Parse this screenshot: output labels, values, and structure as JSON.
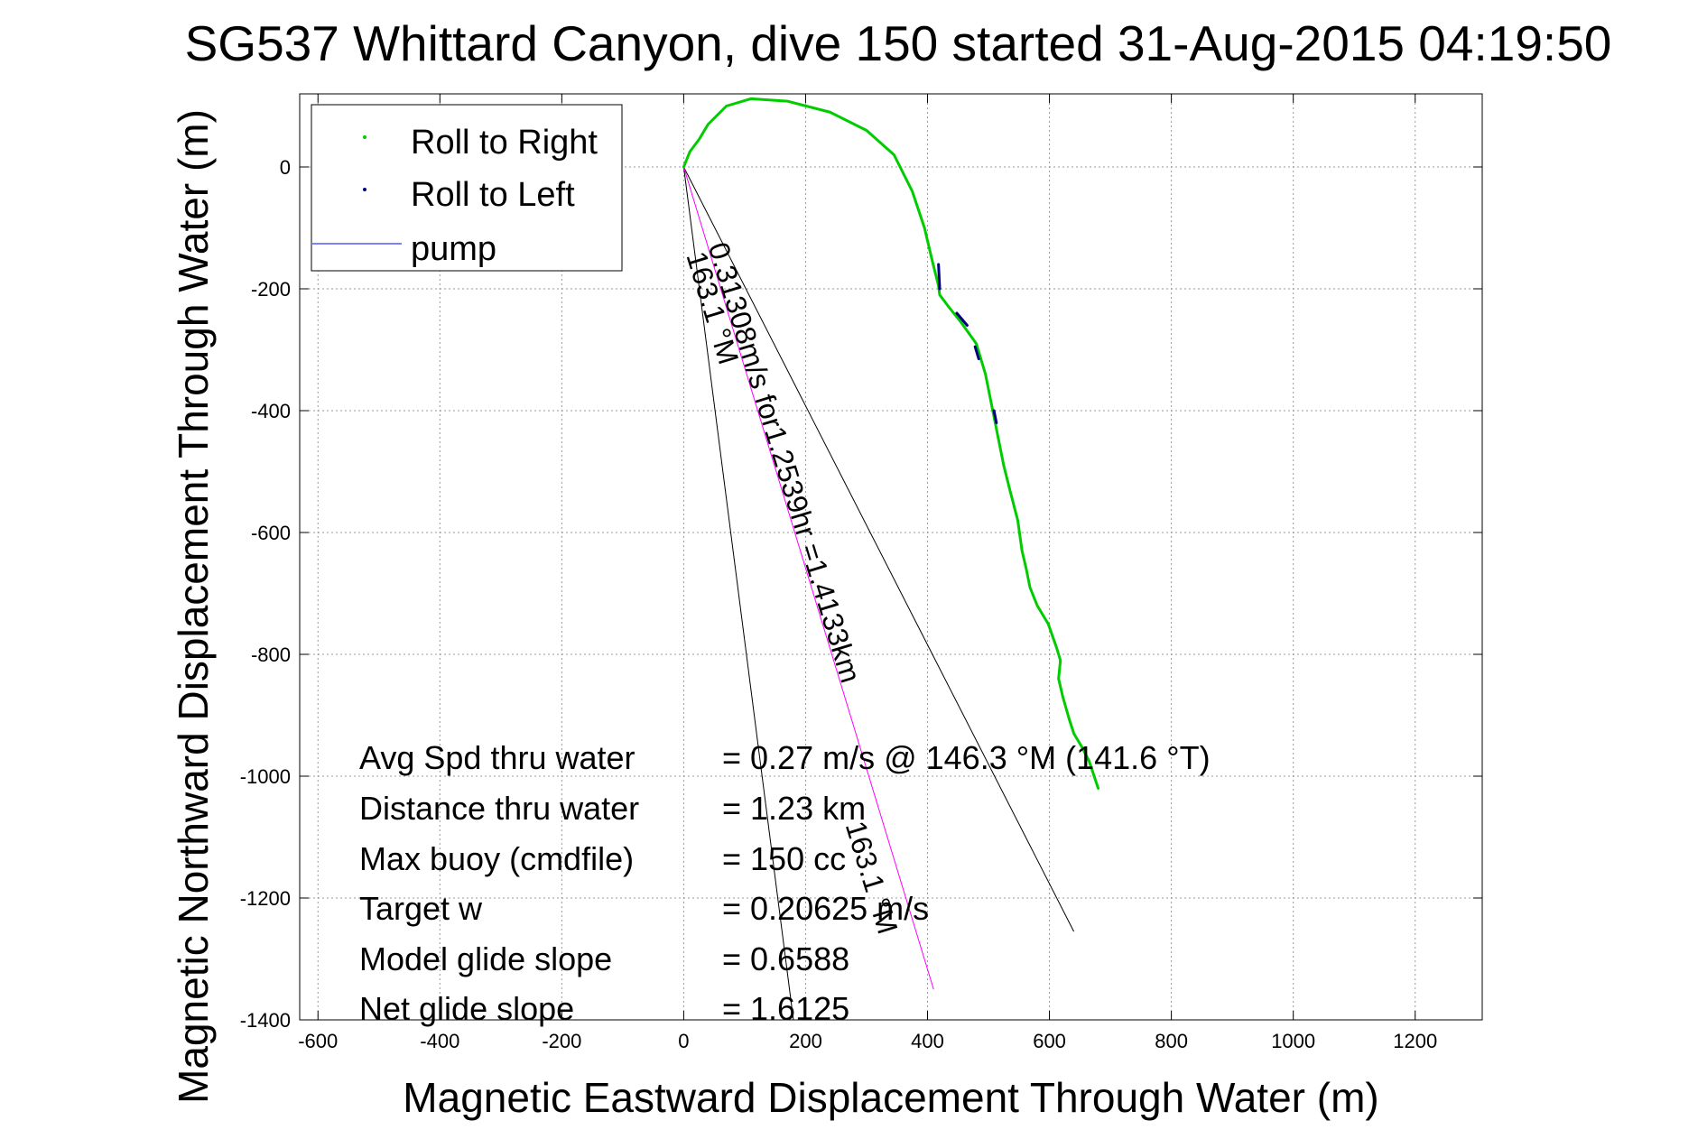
{
  "chart_data": {
    "type": "line",
    "title": "SG537 Whittard Canyon, dive 150 started 31-Aug-2015 04:19:50",
    "xlabel": "Magnetic Eastward Displacement Through Water (m)",
    "ylabel": "Magnetic Northward Displacement Through Water (m)",
    "xlim": [
      -630,
      1310
    ],
    "ylim": [
      -1400,
      120
    ],
    "xticks": [
      -600,
      -400,
      -200,
      0,
      200,
      400,
      600,
      800,
      1000,
      1200
    ],
    "yticks": [
      0,
      -200,
      -400,
      -600,
      -800,
      -1000,
      -1200,
      -1400
    ],
    "grid": true,
    "legend_position": "top-left",
    "legend": [
      {
        "label": "Roll to Right",
        "color": "#00cc00",
        "marker": "dot"
      },
      {
        "label": "Roll to Left",
        "color": "#000080",
        "marker": "dot"
      },
      {
        "label": "pump",
        "color": "#0000ff",
        "marker": "line"
      }
    ],
    "series": [
      {
        "name": "Roll to Right",
        "color": "#00cc00",
        "x": [
          0,
          10,
          25,
          40,
          70,
          110,
          170,
          240,
          300,
          345,
          375,
          395,
          408,
          418,
          420,
          435,
          455,
          480,
          495,
          505,
          515,
          525,
          535,
          548,
          555,
          562,
          568,
          580,
          598,
          612,
          618,
          615,
          622,
          632,
          640,
          652,
          665,
          680
        ],
        "y": [
          0,
          25,
          45,
          70,
          100,
          112,
          108,
          90,
          60,
          20,
          -40,
          -100,
          -155,
          -195,
          -210,
          -230,
          -255,
          -290,
          -340,
          -390,
          -440,
          -490,
          -530,
          -580,
          -630,
          -660,
          -690,
          -720,
          -750,
          -790,
          -810,
          -840,
          -870,
          -905,
          -930,
          -950,
          -975,
          -1020
        ]
      },
      {
        "name": "Roll to Left",
        "color": "#000080",
        "segments": [
          {
            "x": [
              418,
              420
            ],
            "y": [
              -160,
              -200
            ]
          },
          {
            "x": [
              448,
              465
            ],
            "y": [
              -240,
              -260
            ]
          },
          {
            "x": [
              478,
              484
            ],
            "y": [
              -295,
              -315
            ]
          },
          {
            "x": [
              509,
              513
            ],
            "y": [
              -400,
              -420
            ]
          }
        ]
      }
    ],
    "reference_lines": {
      "line_a": {
        "x": [
          0,
          180
        ],
        "y": [
          0,
          -1400
        ]
      },
      "line_b": {
        "x": [
          0,
          640
        ],
        "y": [
          0,
          -1255
        ]
      },
      "heading_line": {
        "x": [
          0,
          410
        ],
        "y": [
          0,
          -1350
        ],
        "color": "#ff00ff"
      }
    },
    "annotations": [
      {
        "text": "0.31308m/s for1.2539hr =1.4133km",
        "x": 40,
        "y": -130,
        "angle": 73
      },
      {
        "text": "163.1 °M",
        "x": 4,
        "y": -145,
        "angle": 73
      },
      {
        "text": "163.1 °M",
        "x": 265,
        "y": -1080,
        "angle": 73
      }
    ],
    "stats": [
      {
        "label": "Avg Spd thru water",
        "value": "=  0.27 m/s @ 146.3 °M (141.6 °T)"
      },
      {
        "label": "Distance thru water",
        "value": "=  1.23 km"
      },
      {
        "label": "Max buoy (cmdfile)",
        "value": "= 150 cc"
      },
      {
        "label": "Target w",
        "value": "= 0.20625 m/s"
      },
      {
        "label": "Model glide slope",
        "value": "= 0.6588"
      },
      {
        "label": "Net glide slope",
        "value": "= 1.6125"
      }
    ]
  }
}
